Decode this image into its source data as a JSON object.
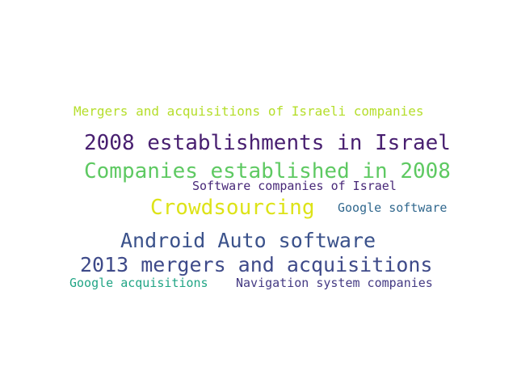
{
  "words": [
    {
      "text": "Mergers and acquisitions of Israeli companies",
      "color": "#b5de2b"
    },
    {
      "text": "2008 establishments in Israel",
      "color": "#481f70"
    },
    {
      "text": "Companies established in 2008",
      "color": "#5ec962"
    },
    {
      "text": "Software companies of Israel",
      "color": "#482878"
    },
    {
      "text": "Crowdsourcing",
      "color": "#dde318"
    },
    {
      "text": "Google software",
      "color": "#31688e"
    },
    {
      "text": "Android Auto software",
      "color": "#3b528b"
    },
    {
      "text": "2013 mergers and acquisitions",
      "color": "#3e4a89"
    },
    {
      "text": "Google acquisitions",
      "color": "#21a585"
    },
    {
      "text": "Navigation system companies",
      "color": "#443a83"
    }
  ]
}
